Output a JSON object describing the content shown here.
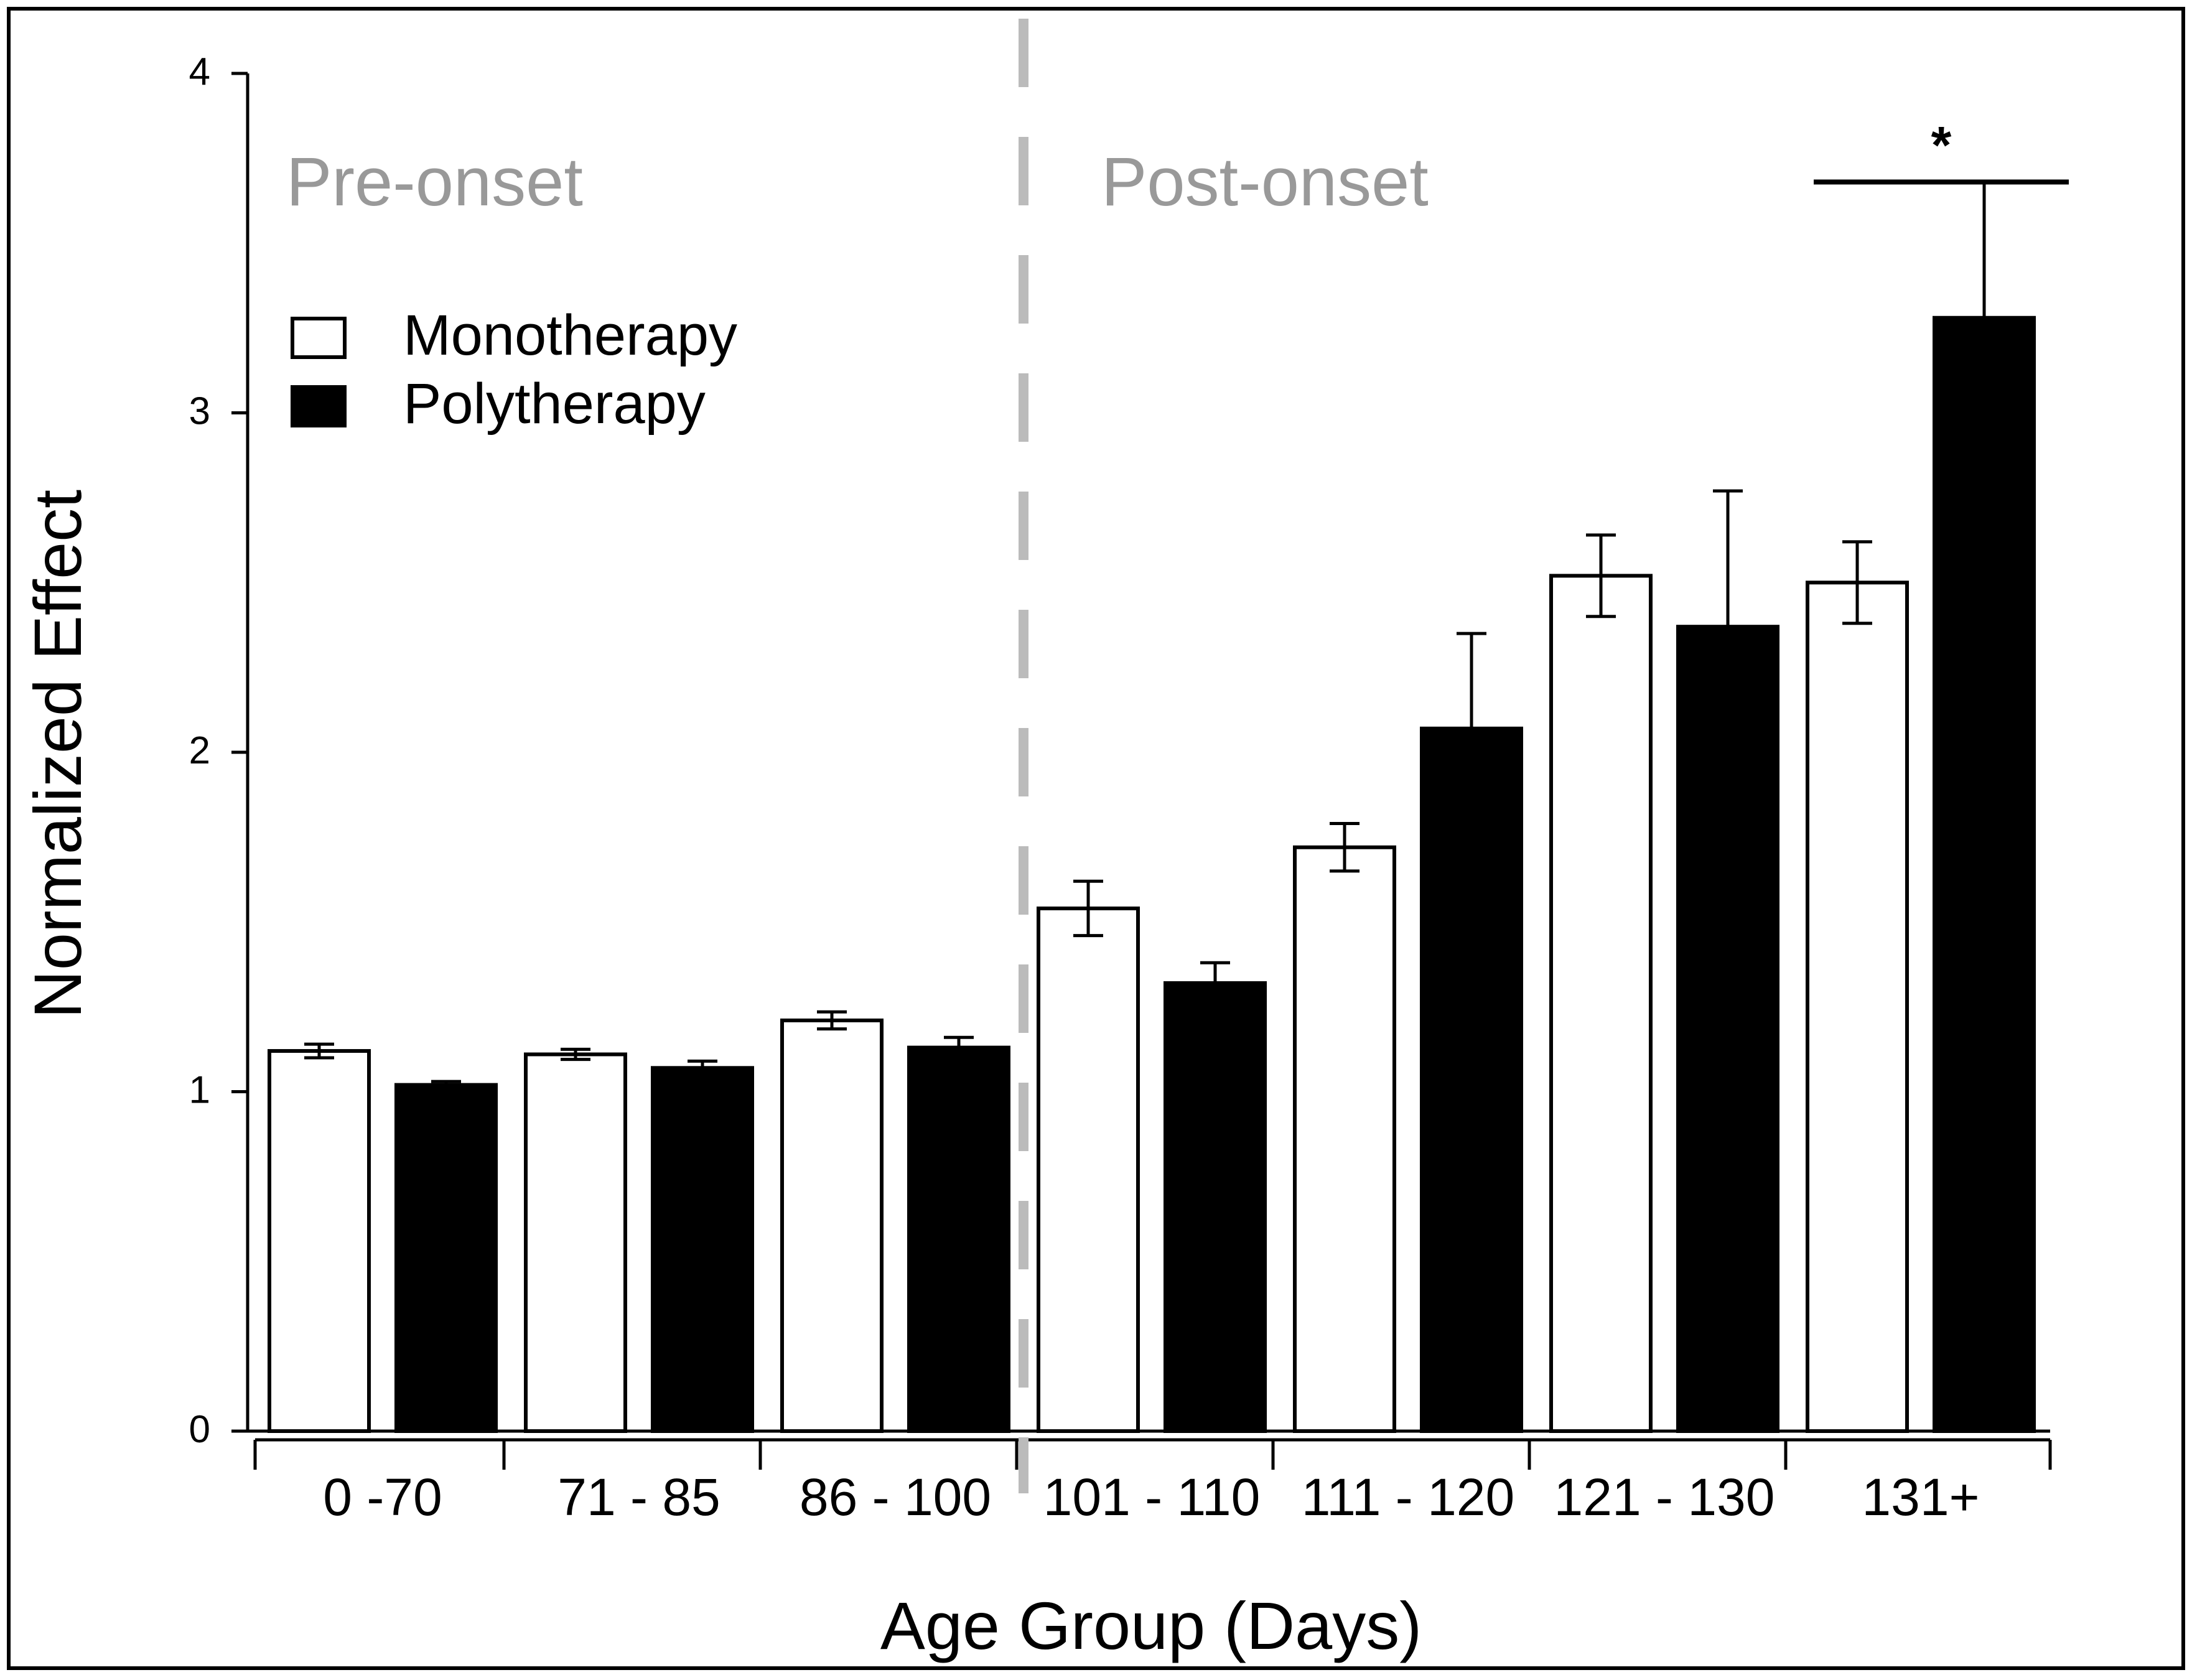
{
  "chart_data": {
    "type": "bar",
    "title": "",
    "xlabel": "Age Group (Days)",
    "ylabel": "Normalized Effect",
    "ylim": [
      0,
      4
    ],
    "yticks": [
      "0",
      "1",
      "2",
      "3",
      "4"
    ],
    "categories": [
      "0 -70",
      "71 - 85",
      "86 - 100",
      "101 - 110",
      "111 - 120",
      "121 - 130",
      "131+"
    ],
    "series": [
      {
        "name": "Monotherapy",
        "fill": "#ffffff",
        "values": [
          1.12,
          1.11,
          1.21,
          1.54,
          1.72,
          2.52,
          2.5
        ],
        "errors": [
          0.02,
          0.015,
          0.025,
          0.08,
          0.07,
          0.12,
          0.12
        ]
      },
      {
        "name": "Polytherapy",
        "fill": "#000000",
        "values": [
          1.02,
          1.07,
          1.13,
          1.32,
          2.07,
          2.37,
          3.28
        ],
        "errors": [
          0.01,
          0.02,
          0.03,
          0.06,
          0.28,
          0.4,
          0.4
        ]
      }
    ],
    "legend": {
      "position": "top-left",
      "items": [
        "Monotherapy",
        "Polytherapy"
      ]
    },
    "annotations": {
      "pre_onset": "Pre-onset",
      "post_onset": "Post-onset",
      "onset_divider_after_category": "86 - 100",
      "significance_marker": "*",
      "significance_level": 3.68,
      "significance_category": "131+"
    },
    "colors": {
      "axis": "#000000",
      "region_label": "#999999",
      "divider": "#bbbbbb",
      "bar_outline": "#000000"
    },
    "grid": false
  }
}
